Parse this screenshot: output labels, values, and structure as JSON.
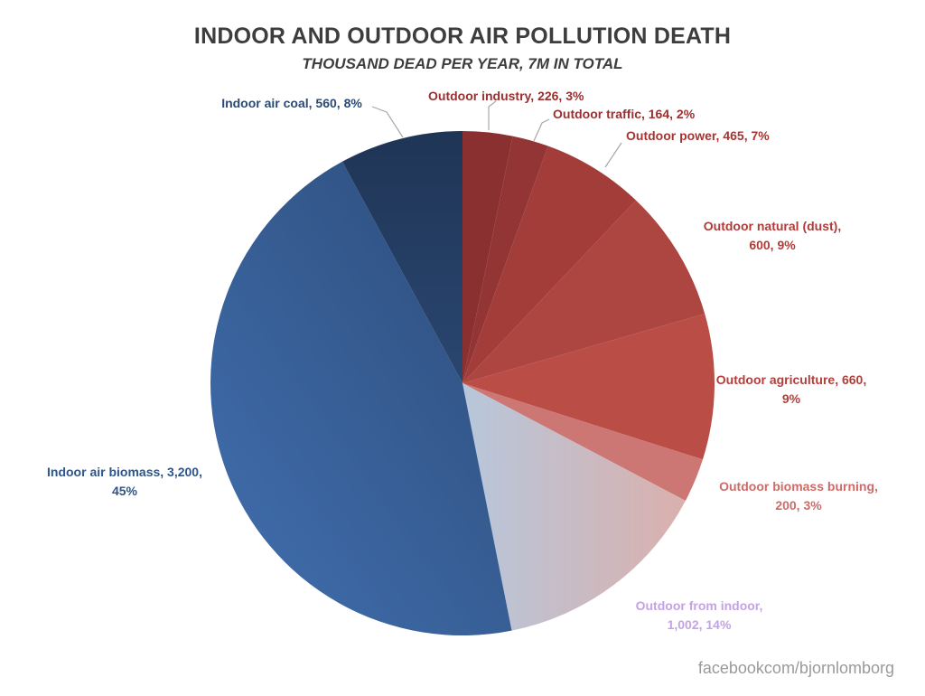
{
  "chart_data": {
    "type": "pie",
    "title": "INDOOR AND OUTDOOR AIR POLLUTION DEATH",
    "subtitle": "THOUSAND DEAD PER YEAR, 7M IN TOTAL",
    "start_angle_deg": 0,
    "direction": "clockwise",
    "slices": [
      {
        "name": "Outdoor industry",
        "value": 226,
        "percent": 3,
        "color": "#8b3030",
        "label_lines": [
          "Outdoor industry, 226, 3%"
        ],
        "label_color": "#9b2f2f",
        "label_anchor": "start"
      },
      {
        "name": "Outdoor traffic",
        "value": 164,
        "percent": 2,
        "color": "#943535",
        "label_lines": [
          "Outdoor traffic, 164, 2%"
        ],
        "label_color": "#9b2f2f",
        "label_anchor": "start"
      },
      {
        "name": "Outdoor power",
        "value": 465,
        "percent": 7,
        "color": "#a23d3a",
        "label_lines": [
          "Outdoor power, 465, 7%"
        ],
        "label_color": "#a33533",
        "label_anchor": "start"
      },
      {
        "name": "Outdoor natural (dust)",
        "value": 600,
        "percent": 9,
        "color": "#ad4641",
        "label_lines": [
          "Outdoor natural (dust),",
          "600, 9%"
        ],
        "label_color": "#b03b38",
        "label_anchor": "middle"
      },
      {
        "name": "Outdoor agriculture",
        "value": 660,
        "percent": 9,
        "color": "#bb4d47",
        "label_lines": [
          "Outdoor agriculture, 660,",
          "9%"
        ],
        "label_color": "#b53e3a",
        "label_anchor": "middle"
      },
      {
        "name": "Outdoor biomass burning",
        "value": 200,
        "percent": 3,
        "color": "#cc7774",
        "label_lines": [
          "Outdoor biomass burning,",
          "200, 3%"
        ],
        "label_color": "#cd6b68",
        "label_anchor": "middle"
      },
      {
        "name": "Outdoor from indoor",
        "value": 1002,
        "percent": 14,
        "color": "#c9bcc8",
        "label_lines": [
          "Outdoor from indoor,",
          "1,002, 14%"
        ],
        "label_color": "#c4a2e6",
        "label_anchor": "middle"
      },
      {
        "name": "Indoor air biomass",
        "value": 3200,
        "percent": 45,
        "color": "#38619a",
        "label_lines": [
          "Indoor air biomass, 3,200,",
          "45%"
        ],
        "label_color": "#2e5488",
        "label_anchor": "middle"
      },
      {
        "name": "Indoor air coal",
        "value": 560,
        "percent": 8,
        "color": "#233b5d",
        "label_lines": [
          "Indoor air coal, 560, 8%"
        ],
        "label_color": "#2b4a73",
        "label_anchor": "middle"
      }
    ]
  },
  "footer": "facebookcom/bjornlomborg"
}
